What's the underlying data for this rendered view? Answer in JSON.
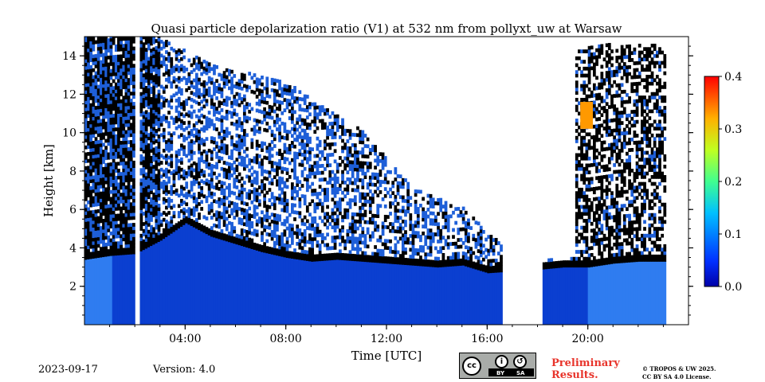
{
  "chart_data": {
    "type": "heatmap",
    "title": "Quasi particle depolarization ratio (V1) at 532 nm from pollyxt_uw at Warsaw",
    "xlabel": "Time [UTC]",
    "ylabel": "Height [km]",
    "xlim_hours": [
      0,
      24
    ],
    "ylim": [
      0,
      15
    ],
    "x_ticks": [
      {
        "value": 4,
        "label": "04:00"
      },
      {
        "value": 8,
        "label": "08:00"
      },
      {
        "value": 12,
        "label": "12:00"
      },
      {
        "value": 16,
        "label": "16:00"
      },
      {
        "value": 20,
        "label": "20:00"
      }
    ],
    "y_ticks": [
      {
        "value": 2,
        "label": "2"
      },
      {
        "value": 4,
        "label": "4"
      },
      {
        "value": 6,
        "label": "6"
      },
      {
        "value": 8,
        "label": "8"
      },
      {
        "value": 10,
        "label": "10"
      },
      {
        "value": 12,
        "label": "12"
      },
      {
        "value": 14,
        "label": "14"
      }
    ],
    "colorbar": {
      "range": [
        0,
        0.4
      ],
      "colormap": "jet",
      "ticks": [
        {
          "value": 0.0,
          "label": "0.0"
        },
        {
          "value": 0.1,
          "label": "0.1"
        },
        {
          "value": 0.2,
          "label": "0.2"
        },
        {
          "value": 0.3,
          "label": "0.3"
        },
        {
          "value": 0.4,
          "label": "0.4"
        }
      ]
    },
    "data_ends_hour": 23.1,
    "data_gaps_hours": [
      [
        2.0,
        2.2
      ],
      [
        16.6,
        18.2
      ]
    ],
    "boundary_layer_top_km": [
      [
        0,
        3.4
      ],
      [
        1,
        3.6
      ],
      [
        2,
        3.7
      ],
      [
        3,
        4.4
      ],
      [
        4,
        5.3
      ],
      [
        5,
        4.6
      ],
      [
        6,
        4.2
      ],
      [
        7,
        3.8
      ],
      [
        8,
        3.5
      ],
      [
        9,
        3.3
      ],
      [
        10,
        3.4
      ],
      [
        11,
        3.3
      ],
      [
        12,
        3.2
      ],
      [
        13,
        3.1
      ],
      [
        14,
        3.0
      ],
      [
        15,
        3.1
      ],
      [
        16,
        2.7
      ],
      [
        18.2,
        2.9
      ],
      [
        19,
        3.0
      ],
      [
        20,
        3.0
      ],
      [
        21,
        3.2
      ],
      [
        22,
        3.3
      ],
      [
        23.1,
        3.3
      ]
    ],
    "cloud_top_km": [
      [
        0,
        15
      ],
      [
        2.9,
        15
      ],
      [
        3.5,
        14.5
      ],
      [
        5,
        13.5
      ],
      [
        8,
        12.5
      ],
      [
        11,
        10
      ],
      [
        13,
        7
      ],
      [
        15,
        6
      ],
      [
        16.6,
        4
      ]
    ],
    "cirrus_layer": {
      "hours": [
        19.7,
        20.2
      ],
      "height_km": [
        10.2,
        11.6
      ],
      "peak_value": 0.33
    },
    "background_value": 0.0,
    "mark_colors": {
      "signal": "#1e5fd8",
      "noise": "#000000",
      "low": "#0b3fd0",
      "mid": "#2f7cf0"
    }
  },
  "footer": {
    "date": "2023-09-17",
    "version": "Version: 4.0",
    "license_badge": {
      "cc": "cc",
      "by": "BY",
      "sa": "SA"
    },
    "preliminary": [
      "Preliminary",
      "Results."
    ],
    "copyright": [
      "© TROPOS & UW 2025.",
      "CC BY SA 4.0 License."
    ]
  }
}
